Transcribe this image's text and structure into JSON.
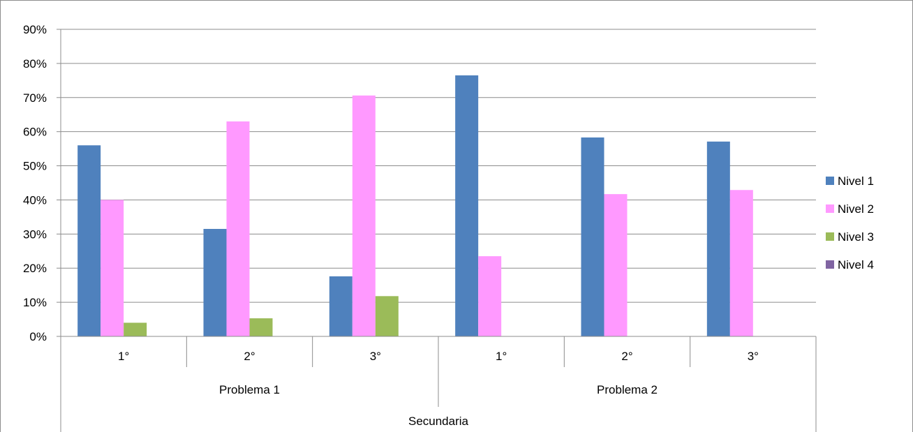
{
  "chart_data": {
    "type": "bar",
    "y_ticks": [
      "0%",
      "10%",
      "20%",
      "30%",
      "40%",
      "50%",
      "60%",
      "70%",
      "80%",
      "90%"
    ],
    "ylim": [
      0,
      90
    ],
    "y_unit": "%",
    "grid": true,
    "legend_position": "right",
    "categories": [
      "1°",
      "2°",
      "3°",
      "1°",
      "2°",
      "3°"
    ],
    "groups": [
      {
        "label": "Problema 1",
        "span": 3
      },
      {
        "label": "Problema 2",
        "span": 3
      }
    ],
    "outer_label": "Secundaria",
    "series": [
      {
        "name": "Nivel 1",
        "color": "#4f81bd",
        "values": [
          56,
          31.5,
          17.6,
          76.5,
          58.3,
          57.1
        ]
      },
      {
        "name": "Nivel 2",
        "color": "#ff99ff",
        "values": [
          40,
          63,
          70.6,
          23.5,
          41.7,
          42.9
        ]
      },
      {
        "name": "Nivel 3",
        "color": "#9bbb59",
        "values": [
          4,
          5.3,
          11.8,
          0,
          0,
          0
        ]
      },
      {
        "name": "Nivel 4",
        "color": "#8064a2",
        "values": [
          0,
          0,
          0,
          0,
          0,
          0
        ]
      }
    ]
  }
}
